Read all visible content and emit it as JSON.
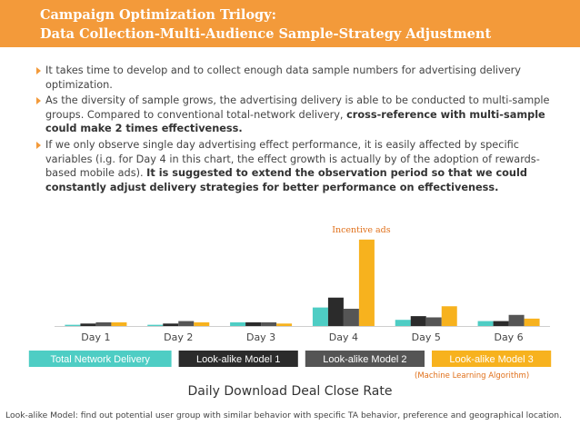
{
  "header": {
    "line1": "Campaign Optimization Trilogy:",
    "line2": "Data Collection-Multi-Audience Sample-Strategy Adjustment"
  },
  "bullets": [
    {
      "text": "It takes time to develop and to collect enough data sample numbers for advertising delivery optimization.",
      "bold": ""
    },
    {
      "text": "As the diversity of sample grows, the advertising delivery is able to be conducted to multi-sample groups. Compared to conventional total-network delivery, ",
      "bold": "cross-reference with multi-sample could make 2 times effectiveness."
    },
    {
      "text": "If we only observe single day advertising effect performance, it is easily affected by specific variables (i.g. for Day 4 in this chart, the effect growth is actually by of the adoption of rewards-based mobile ads). ",
      "bold": "It is suggested to extend the observation period so that we could constantly adjust delivery strategies for better performance on effectiveness."
    }
  ],
  "chart_data": {
    "type": "bar",
    "title": "Daily Download Deal Close Rate",
    "categories": [
      "Day 1",
      "Day 2",
      "Day 3",
      "Day 4",
      "Day 5",
      "Day 6"
    ],
    "series": [
      {
        "name": "Total Network Delivery",
        "color": "#4ecdc4",
        "values": [
          1,
          1,
          3,
          15,
          5,
          4
        ]
      },
      {
        "name": "Look-alike Model 1",
        "color": "#2b2b2b",
        "values": [
          2,
          2,
          3,
          23,
          8,
          4
        ]
      },
      {
        "name": "Look-alike Model 2",
        "color": "#555555",
        "values": [
          3,
          4,
          3,
          14,
          7,
          9
        ]
      },
      {
        "name": "Look-alike Model 3",
        "color": "#f7b21e",
        "values": [
          3,
          3,
          2,
          70,
          16,
          6
        ]
      }
    ],
    "ylim": [
      0,
      75
    ],
    "annotation": {
      "text": "Incentive ads",
      "category": "Day 4",
      "series": "Look-alike Model 3",
      "color": "#e0701a"
    },
    "legend_note": "(Machine Learning Algorithm)",
    "legend_placement": "bottom",
    "grid": false
  },
  "footnote": "Look-alike Model: find out potential user group with similar behavior with specific TA behavior, preference and geographical location."
}
